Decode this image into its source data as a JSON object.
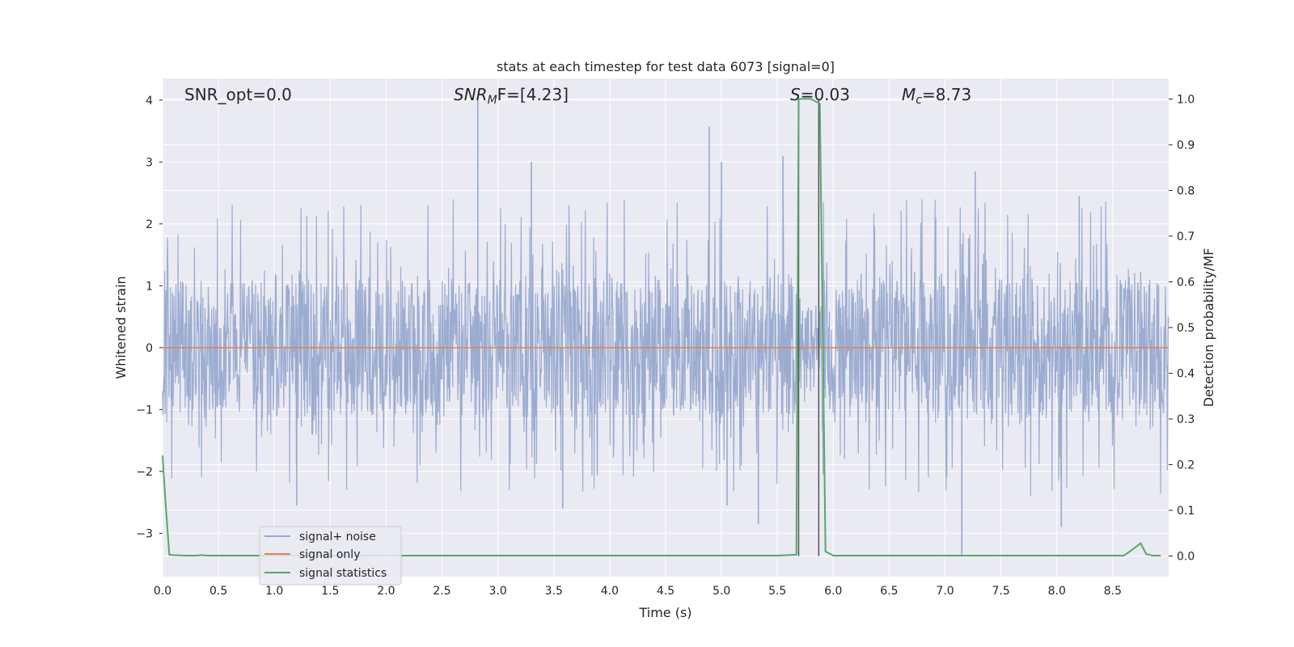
{
  "chart_data": {
    "type": "line",
    "title": "stats at each timestep for test data 6073 [signal=0]",
    "xlabel": "Time (s)",
    "ylabel_left": "Whitened strain",
    "ylabel_right": "Detection probability/MF",
    "xlim": [
      0.0,
      9.0
    ],
    "ylim_left": [
      -3.7,
      4.35
    ],
    "ylim_right": [
      -0.045,
      1.045
    ],
    "x_ticks": [
      "0.0",
      "0.5",
      "1.0",
      "1.5",
      "2.0",
      "2.5",
      "3.0",
      "3.5",
      "4.0",
      "4.5",
      "5.0",
      "5.5",
      "6.0",
      "6.5",
      "7.0",
      "7.5",
      "8.0",
      "8.5"
    ],
    "y_left_ticks": [
      "−3",
      "−2",
      "−1",
      "0",
      "1",
      "2",
      "3",
      "4"
    ],
    "y_right_ticks": [
      "0.0",
      "0.1",
      "0.2",
      "0.3",
      "0.4",
      "0.5",
      "0.6",
      "0.7",
      "0.8",
      "0.9",
      "1.0"
    ],
    "annotations": {
      "snr_opt": "SNR_opt=0.0",
      "snr_mf_main": "SNR",
      "snr_mf_sub": "M",
      "snr_mf_rest": "F=[4.23]",
      "s_main": "S",
      "s_rest": "=0.03",
      "mc_main": "M",
      "mc_sub": "c",
      "mc_rest": "=8.73"
    },
    "vertical_lines_x": [
      5.69,
      5.87
    ],
    "series": [
      {
        "name": "signal+ noise",
        "axis": "left",
        "color": "#98a9cf",
        "description": "whitened strain noise, approx. within ±1.1 with peaks",
        "peaks": [
          {
            "x": 2.82,
            "y": 4.0
          },
          {
            "x": 4.89,
            "y": 3.57
          },
          {
            "x": 5.55,
            "y": 3.1
          },
          {
            "x": 3.3,
            "y": 3.0
          },
          {
            "x": 7.27,
            "y": 2.85
          },
          {
            "x": 5.0,
            "y": 3.0
          },
          {
            "x": 8.2,
            "y": 2.45
          },
          {
            "x": 7.15,
            "y": -3.35
          },
          {
            "x": 5.33,
            "y": -2.85
          },
          {
            "x": 8.04,
            "y": -2.9
          },
          {
            "x": 1.2,
            "y": -2.55
          },
          {
            "x": 5.05,
            "y": -2.55
          },
          {
            "x": 3.58,
            "y": -2.6
          }
        ]
      },
      {
        "name": "signal only",
        "axis": "left",
        "color": "#dd8452",
        "x": [
          0.0,
          9.0
        ],
        "y": [
          0.0,
          0.0
        ]
      },
      {
        "name": "signal statistics",
        "axis": "right",
        "color": "#55a868",
        "x": [
          0.0,
          0.02,
          0.06,
          0.1,
          0.2,
          0.3,
          0.35,
          0.4,
          1.0,
          2.0,
          3.0,
          4.0,
          5.0,
          5.5,
          5.67,
          5.69,
          5.76,
          5.8,
          5.84,
          5.88,
          5.93,
          6.0,
          6.2,
          7.0,
          8.0,
          8.6,
          8.68,
          8.75,
          8.8,
          8.86,
          8.93
        ],
        "y": [
          0.22,
          0.14,
          0.003,
          0.002,
          0.001,
          0.001,
          0.002,
          0.001,
          0.001,
          0.001,
          0.001,
          0.001,
          0.001,
          0.001,
          0.003,
          1.0,
          1.0,
          1.0,
          0.995,
          0.99,
          0.01,
          0.001,
          0.001,
          0.001,
          0.001,
          0.001,
          0.015,
          0.028,
          0.004,
          0.001,
          0.001
        ]
      }
    ],
    "legend": {
      "placement": "lower-left",
      "entries": [
        "signal+ noise",
        "signal only",
        "signal statistics"
      ]
    }
  }
}
